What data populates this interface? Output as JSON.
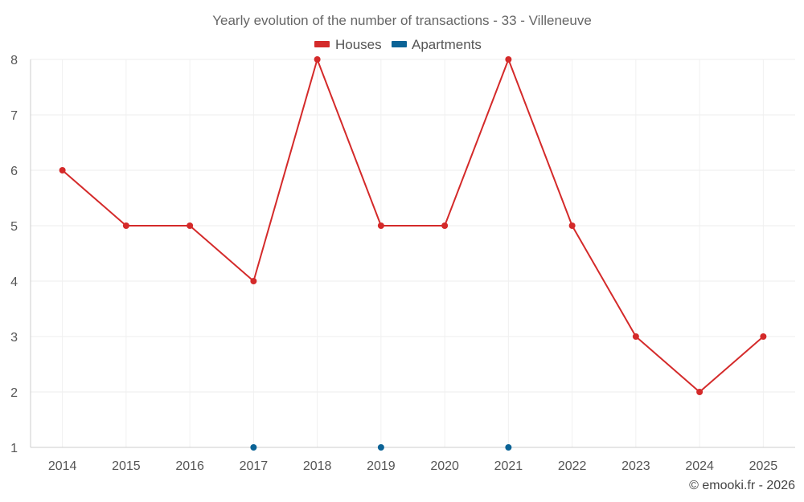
{
  "chart_data": {
    "type": "line",
    "title": "Yearly evolution of the number of transactions - 33 - Villeneuve",
    "xlabel": "",
    "ylabel": "",
    "categories": [
      "2014",
      "2015",
      "2016",
      "2017",
      "2018",
      "2019",
      "2020",
      "2021",
      "2022",
      "2023",
      "2024",
      "2025"
    ],
    "ylim": [
      1,
      8
    ],
    "yticks": [
      1,
      2,
      3,
      4,
      5,
      6,
      7,
      8
    ],
    "grid": true,
    "legend_position": "top-center",
    "series": [
      {
        "name": "Houses",
        "color": "#d42a2a",
        "show_line": true,
        "values": [
          6,
          5,
          5,
          4,
          8,
          5,
          5,
          8,
          5,
          3,
          2,
          3
        ]
      },
      {
        "name": "Apartments",
        "color": "#0b6396",
        "show_line": false,
        "values": [
          null,
          null,
          null,
          1,
          null,
          1,
          null,
          1,
          null,
          null,
          null,
          null
        ]
      }
    ],
    "credit": "© emooki.fr - 2026"
  }
}
